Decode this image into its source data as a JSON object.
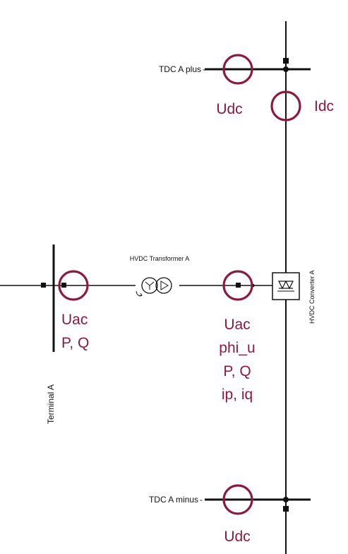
{
  "labels": {
    "tdc_plus": "TDC A plus",
    "tdc_minus": "TDC A minus",
    "transformer": "HVDC Transformer A",
    "converter": "HVDC Converter A",
    "terminal": "Terminal A"
  },
  "measurements": {
    "udc_top": "Udc",
    "idc": "Idc",
    "terminal_lines": [
      "Uac",
      "P, Q"
    ],
    "converter_ac_lines": [
      "Uac",
      "phi_u",
      "P, Q",
      "ip, iq"
    ],
    "udc_bottom": "Udc"
  },
  "colors": {
    "marker": "#8b1a3c",
    "wire": "#111111",
    "background": "#ffffff"
  }
}
